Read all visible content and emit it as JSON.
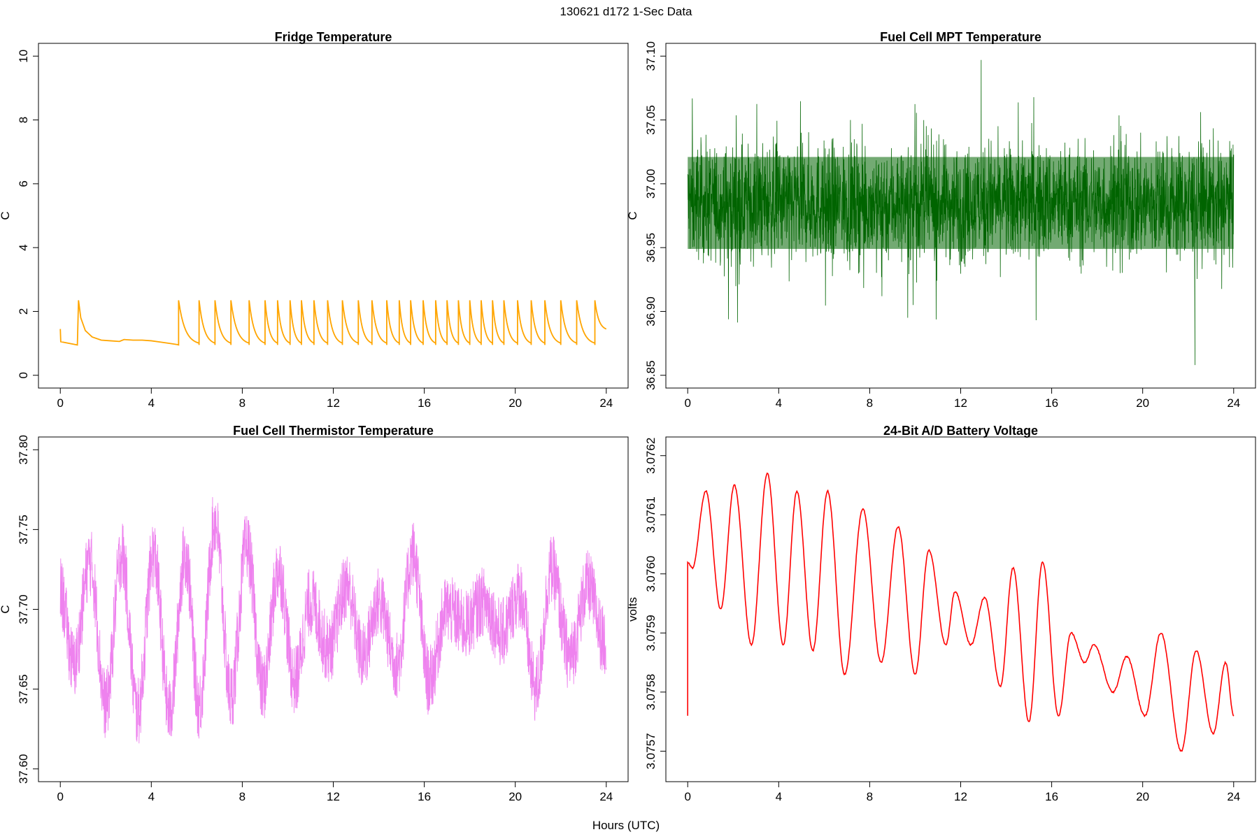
{
  "figure": {
    "title": "130621   d172   1-Sec Data",
    "xlabel": "Hours (UTC)"
  },
  "chart_data": [
    {
      "type": "line",
      "title": "Fridge Temperature",
      "xlabel": "",
      "ylabel": "C",
      "color": "#ffa500",
      "xlim": [
        0,
        24
      ],
      "ylim": [
        0,
        10
      ],
      "xticks": [
        0,
        4,
        8,
        12,
        16,
        20,
        24
      ],
      "yticks": [
        0,
        2,
        4,
        6,
        8,
        10
      ],
      "ytick_labels": [
        "0",
        "2",
        "4",
        "6",
        "8",
        "10"
      ],
      "x": [
        0.0,
        0.02,
        0.75,
        0.8,
        0.9,
        1.1,
        1.4,
        1.8,
        2.2,
        2.6,
        2.8,
        3.2,
        3.6,
        4.0,
        4.4,
        4.8,
        5.15,
        5.2,
        5.3,
        5.5,
        5.8,
        6.0,
        6.1,
        6.2,
        6.4,
        6.7,
        6.8,
        6.9,
        7.1,
        7.4,
        7.5,
        7.6,
        7.8,
        8.2,
        8.3,
        8.5,
        8.8
      ],
      "y": [
        1.45,
        1.05,
        0.95,
        2.35,
        1.8,
        1.4,
        1.2,
        1.1,
        1.08,
        1.06,
        1.12,
        1.1,
        1.1,
        1.08,
        1.04,
        1.0,
        0.96,
        2.35,
        1.8,
        1.4,
        1.1,
        0.98,
        2.35,
        1.8,
        1.35,
        1.0,
        2.35,
        1.75,
        1.3,
        1.0,
        2.35,
        1.75,
        1.3,
        0.95,
        2.35,
        1.6,
        1.2
      ],
      "cycle_starts": [
        5.2,
        6.1,
        6.8,
        7.5,
        8.3,
        9.0,
        9.55,
        10.1,
        10.6,
        11.15,
        11.75,
        12.4,
        13.1,
        13.7,
        14.35,
        14.9,
        15.4,
        15.95,
        16.5,
        17.0,
        17.5,
        18.0,
        18.5,
        19.0,
        19.5,
        20.1,
        20.7,
        21.3,
        22.0,
        22.7,
        23.5
      ],
      "cycle_peak": 2.35,
      "cycle_trough": 0.95,
      "end_value": 1.45
    },
    {
      "type": "line",
      "title": "Fuel Cell MPT Temperature",
      "xlabel": "",
      "ylabel": "C",
      "color": "#006400",
      "xlim": [
        0,
        24
      ],
      "ylim": [
        36.85,
        37.1
      ],
      "xticks": [
        0,
        4,
        8,
        12,
        16,
        20,
        24
      ],
      "yticks": [
        36.85,
        36.9,
        36.95,
        37.0,
        37.05,
        37.1
      ],
      "ytick_labels": [
        "36.85",
        "36.90",
        "36.95",
        "37.00",
        "37.05",
        "37.10"
      ],
      "band_center": 36.985,
      "band_halfwidth": 0.04,
      "spike_max": 37.097,
      "spike_min": 36.858
    },
    {
      "type": "line",
      "title": "Fuel Cell Thermistor Temperature",
      "xlabel": "",
      "ylabel": "C",
      "color": "#ee82ee",
      "xlim": [
        0,
        24
      ],
      "ylim": [
        37.6,
        37.8
      ],
      "xticks": [
        0,
        4,
        8,
        12,
        16,
        20,
        24
      ],
      "yticks": [
        37.6,
        37.65,
        37.7,
        37.75,
        37.8
      ],
      "ytick_labels": [
        "37.60",
        "37.65",
        "37.70",
        "37.75",
        "37.80"
      ],
      "x": [
        0.0,
        0.6,
        1.3,
        2.0,
        2.7,
        3.4,
        4.1,
        4.8,
        5.5,
        6.1,
        6.8,
        7.5,
        8.2,
        8.9,
        9.6,
        10.3,
        11.0,
        11.8,
        12.6,
        13.3,
        14.0,
        14.8,
        15.5,
        16.2,
        17.0,
        17.8,
        18.6,
        19.4,
        20.2,
        20.9,
        21.6,
        22.4,
        23.2,
        23.9
      ],
      "y": [
        37.71,
        37.665,
        37.73,
        37.64,
        37.735,
        37.635,
        37.735,
        37.635,
        37.735,
        37.64,
        37.755,
        37.645,
        37.74,
        37.65,
        37.725,
        37.655,
        37.705,
        37.675,
        37.715,
        37.67,
        37.705,
        37.665,
        37.735,
        37.655,
        37.7,
        37.69,
        37.705,
        37.685,
        37.71,
        37.65,
        37.725,
        37.67,
        37.715,
        37.68
      ],
      "noise_halfwidth": 0.022
    },
    {
      "type": "line",
      "title": "24-Bit A/D Battery Voltage",
      "xlabel": "",
      "ylabel": "volts",
      "color": "#ff0000",
      "xlim": [
        0,
        24
      ],
      "ylim": [
        3.07567,
        3.07621
      ],
      "xticks": [
        0,
        4,
        8,
        12,
        16,
        20,
        24
      ],
      "yticks": [
        3.0757,
        3.0758,
        3.0759,
        3.076,
        3.0761,
        3.0762
      ],
      "ytick_labels": [
        "3.0757",
        "3.0758",
        "3.0759",
        "3.0760",
        "3.0761",
        "3.0762"
      ],
      "x": [
        0.0,
        0.0,
        0.2,
        0.8,
        1.45,
        2.05,
        2.8,
        3.5,
        4.2,
        4.8,
        5.5,
        6.15,
        6.9,
        7.7,
        8.5,
        9.25,
        10.0,
        10.6,
        11.35,
        11.75,
        12.45,
        13.05,
        13.75,
        14.3,
        15.0,
        15.6,
        16.3,
        16.85,
        17.45,
        17.85,
        18.7,
        19.3,
        20.1,
        20.8,
        21.7,
        22.35,
        23.1,
        23.65,
        24.0
      ],
      "y": [
        3.07576,
        3.07602,
        3.07601,
        3.07614,
        3.07594,
        3.07615,
        3.07588,
        3.07617,
        3.07588,
        3.07614,
        3.07587,
        3.07614,
        3.07583,
        3.07611,
        3.07585,
        3.07608,
        3.07583,
        3.07604,
        3.07588,
        3.07597,
        3.07588,
        3.07596,
        3.07581,
        3.07601,
        3.07575,
        3.07602,
        3.07576,
        3.0759,
        3.07585,
        3.07588,
        3.0758,
        3.07586,
        3.07576,
        3.0759,
        3.0757,
        3.07587,
        3.07573,
        3.07585,
        3.07576
      ]
    }
  ]
}
